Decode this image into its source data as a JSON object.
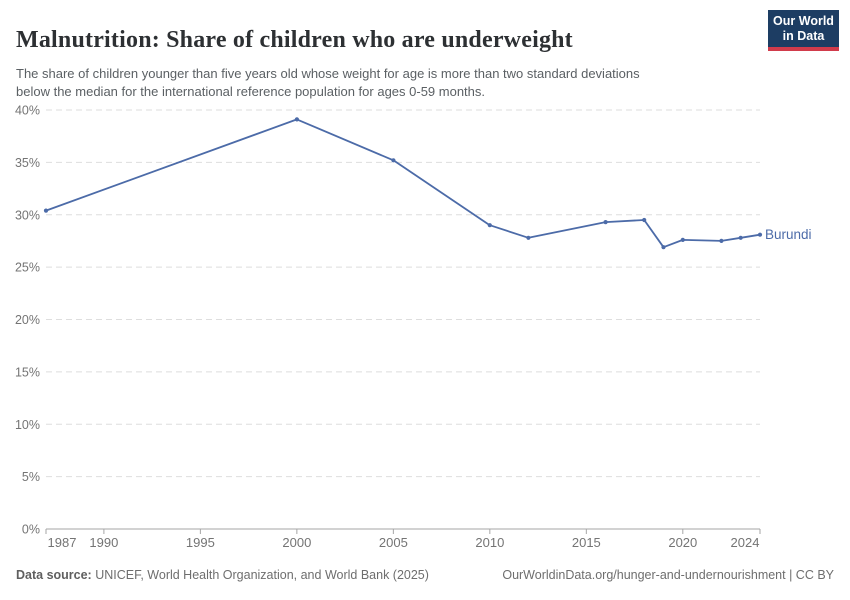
{
  "header": {
    "title": "Malnutrition: Share of children who are underweight",
    "subtitle_lines": [
      "The share of children younger than five years old whose weight for age is more than two standard deviations",
      "below the median for the international reference population for ages 0-59 months."
    ],
    "logo": {
      "line1": "Our World",
      "line2": "in Data",
      "bg_color": "#1d3d63",
      "bar_color": "#d13b4b"
    }
  },
  "chart_data": {
    "type": "line",
    "title": "Malnutrition: Share of children who are underweight",
    "xlabel": "",
    "ylabel": "",
    "xlim": [
      1987,
      2024
    ],
    "ylim": [
      0,
      40
    ],
    "grid": "horizontal-dashed",
    "legend_position": "end-of-line",
    "x_ticks": [
      1987,
      1990,
      1995,
      2000,
      2005,
      2010,
      2015,
      2020,
      2024
    ],
    "y_ticks": [
      {
        "value": 0,
        "label": "0%"
      },
      {
        "value": 5,
        "label": "5%"
      },
      {
        "value": 10,
        "label": "10%"
      },
      {
        "value": 15,
        "label": "15%"
      },
      {
        "value": 20,
        "label": "20%"
      },
      {
        "value": 25,
        "label": "25%"
      },
      {
        "value": 30,
        "label": "30%"
      },
      {
        "value": 35,
        "label": "35%"
      },
      {
        "value": 40,
        "label": "40%"
      }
    ],
    "series": [
      {
        "name": "Burundi",
        "color": "#4C6BA8",
        "points": [
          [
            1987,
            30.4
          ],
          [
            2000,
            39.1
          ],
          [
            2005,
            35.2
          ],
          [
            2010,
            29.0
          ],
          [
            2012,
            27.8
          ],
          [
            2016,
            29.3
          ],
          [
            2018,
            29.5
          ],
          [
            2019,
            26.9
          ],
          [
            2020,
            27.6
          ],
          [
            2022,
            27.5
          ],
          [
            2023,
            27.8
          ],
          [
            2024,
            28.1
          ]
        ]
      }
    ],
    "axis_colors": {
      "grid": "#dedede",
      "axis_line": "#a6a6a6",
      "tick_text": "#747474"
    }
  },
  "footer": {
    "datasource_label": "Data source:",
    "datasource_text": " UNICEF, World Health Organization, and World Bank (2025)",
    "license_text": "OurWorldinData.org/hunger-and-undernourishment | CC BY"
  }
}
